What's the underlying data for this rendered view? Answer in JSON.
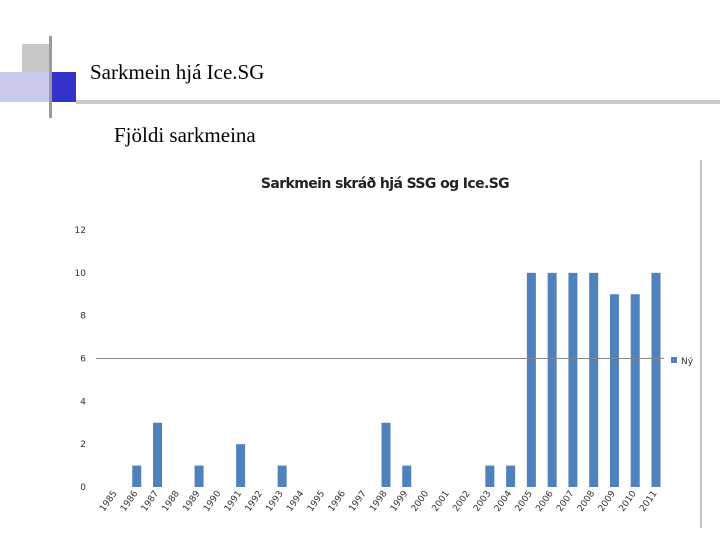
{
  "slide": {
    "title": "Sarkmein hjá Ice.SG",
    "subtitle": "Fjöldi sarkmeina"
  },
  "colors": {
    "accent_blue": "#3333cc",
    "accent_light": "#c9c9ee",
    "accent_gray": "#b3b3b3",
    "bar": "#4f81bd",
    "axis": "#868686"
  },
  "chart_data": {
    "type": "bar",
    "title": "Sarkmein skráð hjá SSG og Ice.SG",
    "xlabel": "",
    "ylabel": "",
    "ylim": [
      0,
      12
    ],
    "yticks": [
      0,
      2,
      4,
      6,
      8,
      10,
      12
    ],
    "grid": false,
    "legend": "right",
    "categories": [
      "1985",
      "1986",
      "1987",
      "1988",
      "1989",
      "1990",
      "1991",
      "1992",
      "1993",
      "1994",
      "1995",
      "1996",
      "1997",
      "1998",
      "1999",
      "2000",
      "2001",
      "2002",
      "2003",
      "2004",
      "2005",
      "2006",
      "2007",
      "2008",
      "2009",
      "2010",
      "2011"
    ],
    "series": [
      {
        "name": "Ný",
        "values": [
          0,
          1,
          3,
          0,
          1,
          0,
          2,
          0,
          1,
          0,
          0,
          0,
          0,
          3,
          1,
          0,
          0,
          0,
          1,
          1,
          10,
          10,
          10,
          10,
          9,
          9,
          10
        ]
      }
    ]
  }
}
